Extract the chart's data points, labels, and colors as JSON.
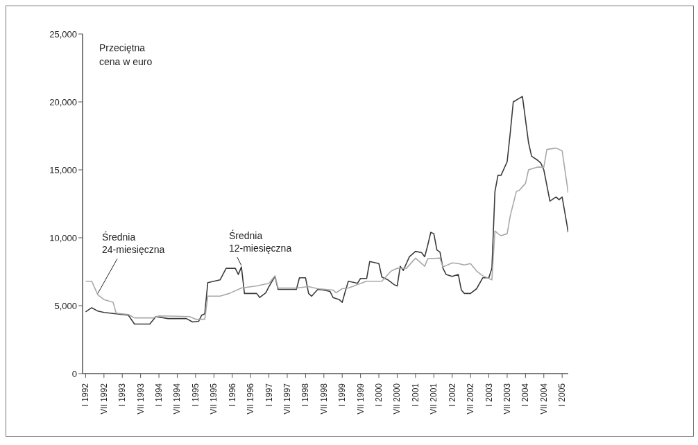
{
  "chart_data": {
    "type": "line",
    "ylabel": "Przeciętna cena w euro",
    "xlim": [
      "1991-12",
      "2005-03"
    ],
    "xticks": [
      {
        "value": "1992-01",
        "label": "I 1992"
      },
      {
        "value": "1992-07",
        "label": "VII 1992"
      },
      {
        "value": "1993-01",
        "label": "I 1993"
      },
      {
        "value": "1993-07",
        "label": "VII 1993"
      },
      {
        "value": "1994-01",
        "label": "I 1994"
      },
      {
        "value": "1994-07",
        "label": "VII 1994"
      },
      {
        "value": "1995-01",
        "label": "I 1995"
      },
      {
        "value": "1995-07",
        "label": "VII 1995"
      },
      {
        "value": "1996-01",
        "label": "I 1996"
      },
      {
        "value": "1996-07",
        "label": "VII 1996"
      },
      {
        "value": "1997-01",
        "label": "I 1997"
      },
      {
        "value": "1997-07",
        "label": "VII 1997"
      },
      {
        "value": "1998-01",
        "label": "I 1998"
      },
      {
        "value": "1998-07",
        "label": "VII 1998"
      },
      {
        "value": "1999-01",
        "label": "I 1999"
      },
      {
        "value": "1999-07",
        "label": "VII 1999"
      },
      {
        "value": "2000-01",
        "label": "I 2000"
      },
      {
        "value": "2000-07",
        "label": "VII 2000"
      },
      {
        "value": "2001-01",
        "label": "I 2001"
      },
      {
        "value": "2001-07",
        "label": "VII 2001"
      },
      {
        "value": "2002-01",
        "label": "I 2002"
      },
      {
        "value": "2002-07",
        "label": "VII 2002"
      },
      {
        "value": "2003-01",
        "label": "I 2003"
      },
      {
        "value": "2003-07",
        "label": "VII 2003"
      },
      {
        "value": "2004-01",
        "label": "I 2004"
      },
      {
        "value": "2004-07",
        "label": "VII 2004"
      },
      {
        "value": "2005-01",
        "label": "I 2005"
      }
    ],
    "ylim": [
      0,
      25000
    ],
    "yticks": [
      0,
      {
        "value": 5000,
        "label": "5,000"
      },
      {
        "value": 10000,
        "label": "10,000"
      },
      {
        "value": 15000,
        "label": "15,000"
      },
      {
        "value": 20000,
        "label": "20,000"
      },
      {
        "value": 25000,
        "label": "25,000"
      }
    ],
    "marker": "none",
    "line_style": "solid",
    "series": [
      {
        "name": "Średnia 12-miesięczna",
        "color": "#3a3a3a",
        "x": [
          "1992-01",
          "1992-03",
          "1992-05",
          "1992-07",
          "1992-11",
          "1993-03",
          "1993-05",
          "1993-10",
          "1993-12",
          "1994-04",
          "1994-10",
          "1994-12",
          "1995-02",
          "1995-03",
          "1995-04",
          "1995-05",
          "1995-09",
          "1995-11",
          "1996-02",
          "1996-03",
          "1996-04",
          "1996-05",
          "1996-09",
          "1996-10",
          "1996-12",
          "1997-01",
          "1997-03",
          "1997-04",
          "1997-10",
          "1997-11",
          "1998-01",
          "1998-02",
          "1998-03",
          "1998-05",
          "1998-07",
          "1998-09",
          "1998-10",
          "1998-12",
          "1999-01",
          "1999-02",
          "1999-03",
          "1999-06",
          "1999-07",
          "1999-09",
          "1999-10",
          "2000-01",
          "2000-02",
          "2000-04",
          "2000-06",
          "2000-07",
          "2000-08",
          "2000-09",
          "2000-11",
          "2001-01",
          "2001-03",
          "2001-04",
          "2001-05",
          "2001-06",
          "2001-07",
          "2001-08",
          "2001-09",
          "2001-10",
          "2001-11",
          "2002-01",
          "2002-03",
          "2002-04",
          "2002-05",
          "2002-07",
          "2002-09",
          "2002-11",
          "2003-01",
          "2003-02",
          "2003-03",
          "2003-04",
          "2003-05",
          "2003-07",
          "2003-08",
          "2003-09",
          "2003-12",
          "2004-02",
          "2004-03",
          "2004-05",
          "2004-06",
          "2004-07",
          "2004-09",
          "2004-11",
          "2004-12",
          "2005-01",
          "2005-03"
        ],
        "values": [
          4550,
          4850,
          4600,
          4500,
          4400,
          4300,
          3650,
          3650,
          4200,
          4050,
          4050,
          3800,
          3850,
          4300,
          4400,
          6700,
          6900,
          7750,
          7750,
          7300,
          7850,
          5900,
          5900,
          5600,
          5950,
          6400,
          7150,
          6200,
          6200,
          7050,
          7050,
          5900,
          5700,
          6200,
          6150,
          6050,
          5600,
          5450,
          5250,
          6050,
          6800,
          6650,
          7000,
          7000,
          8250,
          8100,
          7100,
          6900,
          6550,
          6450,
          7900,
          7600,
          8600,
          9000,
          8900,
          8600,
          9450,
          10400,
          10300,
          9100,
          8950,
          7750,
          7300,
          7150,
          7300,
          6150,
          5900,
          5900,
          6250,
          7050,
          7050,
          7750,
          13400,
          14600,
          14600,
          15600,
          17700,
          20000,
          20400,
          17000,
          16000,
          15700,
          15500,
          15000,
          12700,
          13000,
          12800,
          13000,
          10400
        ]
      },
      {
        "name": "Średnia 24-miesięczna",
        "color": "#a8a8a8",
        "x": [
          "1992-01",
          "1992-03",
          "1992-05",
          "1992-07",
          "1992-10",
          "1992-11",
          "1993-03",
          "1993-05",
          "1993-11",
          "1994-01",
          "1994-11",
          "1995-01",
          "1995-04",
          "1995-05",
          "1995-09",
          "1995-12",
          "1996-04",
          "1996-09",
          "1997-01",
          "1997-03",
          "1997-04",
          "1997-10",
          "1998-02",
          "1998-05",
          "1998-10",
          "1998-11",
          "1999-01",
          "1999-03",
          "1999-06",
          "1999-09",
          "2000-02",
          "2000-05",
          "2000-07",
          "2000-10",
          "2001-01",
          "2001-04",
          "2001-05",
          "2001-09",
          "2001-10",
          "2002-01",
          "2002-03",
          "2002-05",
          "2002-07",
          "2002-09",
          "2002-11",
          "2003-01",
          "2003-02",
          "2003-03",
          "2003-04",
          "2003-05",
          "2003-07",
          "2003-08",
          "2003-10",
          "2003-11",
          "2004-01",
          "2004-02",
          "2004-05",
          "2004-07",
          "2004-08",
          "2004-11",
          "2005-01",
          "2005-03"
        ],
        "values": [
          6800,
          6800,
          5800,
          5450,
          5250,
          4450,
          4350,
          4100,
          4100,
          4250,
          4200,
          4000,
          4000,
          5700,
          5700,
          5900,
          6300,
          6450,
          6650,
          7200,
          6300,
          6300,
          6400,
          6250,
          6150,
          5950,
          6250,
          6300,
          6550,
          6800,
          6800,
          7550,
          7750,
          7750,
          8500,
          7900,
          8450,
          8500,
          7850,
          8150,
          8100,
          8000,
          8100,
          7550,
          7200,
          7000,
          6900,
          10500,
          10300,
          10150,
          10300,
          11600,
          13400,
          13500,
          14000,
          15000,
          15200,
          15200,
          16500,
          16600,
          16400,
          13300
        ]
      }
    ]
  }
}
